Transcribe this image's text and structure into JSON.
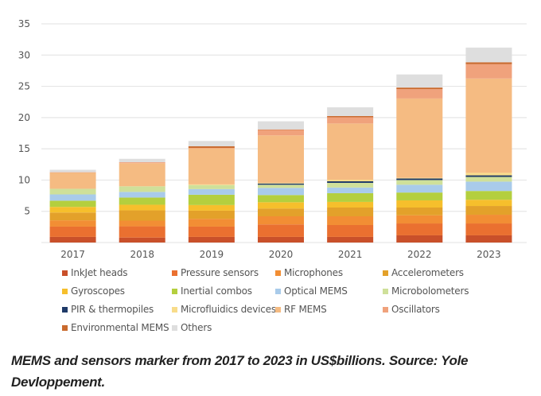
{
  "chart_data": {
    "type": "bar",
    "stacked": true,
    "title": "",
    "xlabel": "",
    "ylabel": "",
    "ylim": [
      0,
      35
    ],
    "yticks": [
      5,
      10,
      15,
      20,
      25,
      30,
      35
    ],
    "grid": true,
    "legend_position": "bottom",
    "categories": [
      "2017",
      "2018",
      "2019",
      "2020",
      "2021",
      "2022",
      "2023"
    ],
    "series": [
      {
        "name": "InkJet heads",
        "color": "#c9502a",
        "values": [
          0.9,
          0.8,
          0.9,
          0.9,
          0.9,
          1.15,
          1.15
        ]
      },
      {
        "name": "Pressure sensors",
        "color": "#ea7030",
        "values": [
          1.65,
          1.8,
          1.65,
          2.0,
          1.9,
          1.9,
          1.9
        ]
      },
      {
        "name": "Microphones",
        "color": "#f28e34",
        "values": [
          1.0,
          0.9,
          1.25,
          1.3,
          1.4,
          1.3,
          1.4
        ]
      },
      {
        "name": "Accelerometers",
        "color": "#e3a12a",
        "values": [
          1.25,
          1.65,
          1.3,
          1.25,
          1.4,
          1.25,
          1.4
        ]
      },
      {
        "name": "Gyroscopes",
        "color": "#f6bf2c",
        "values": [
          0.9,
          0.9,
          0.9,
          1.0,
          0.9,
          1.15,
          1.0
        ]
      },
      {
        "name": "Inertial combos",
        "color": "#b4cf3e",
        "values": [
          1.0,
          1.15,
          1.65,
          1.15,
          1.4,
          1.25,
          1.4
        ]
      },
      {
        "name": "Optical MEMS",
        "color": "#a9cbea",
        "values": [
          1.0,
          0.9,
          0.9,
          1.15,
          0.9,
          1.25,
          1.5
        ]
      },
      {
        "name": "Microbolometers",
        "color": "#cfe09a",
        "values": [
          0.9,
          0.9,
          0.65,
          0.5,
          0.75,
          0.75,
          0.75
        ]
      },
      {
        "name": "PIR & thermopiles",
        "color": "#1f3a68",
        "values": [
          0,
          0,
          0,
          0.2,
          0.25,
          0.25,
          0.25
        ]
      },
      {
        "name": "Microfluidics devices",
        "color": "#f8dc8a",
        "values": [
          0,
          0,
          0.1,
          0.1,
          0.25,
          0.1,
          0.4
        ]
      },
      {
        "name": "RF MEMS",
        "color": "#f5bb82",
        "values": [
          2.6,
          3.7,
          5.8,
          7.6,
          9.0,
          12.7,
          15.1
        ]
      },
      {
        "name": "Oscillators",
        "color": "#f0a27c",
        "values": [
          0.05,
          0.15,
          0.05,
          0.9,
          1.0,
          1.5,
          2.3
        ]
      },
      {
        "name": "Environmental MEMS",
        "color": "#c96a2e",
        "values": [
          0,
          0,
          0.25,
          0.05,
          0.2,
          0.25,
          0.3
        ]
      },
      {
        "name": "Others",
        "color": "#dedede",
        "values": [
          0.4,
          0.55,
          0.85,
          1.3,
          1.4,
          2.1,
          2.35
        ]
      }
    ]
  },
  "caption": "MEMS and sensors marker from 2017 to 2023 in US$billions. Source: Yole Devloppement."
}
